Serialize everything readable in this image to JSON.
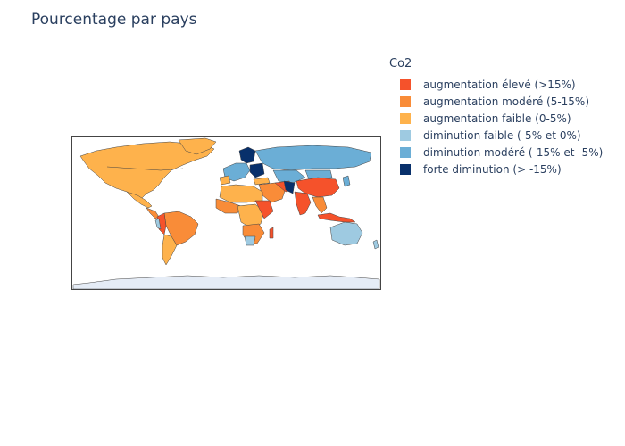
{
  "title": "Pourcentage par pays",
  "legend": {
    "title": "Co2",
    "items": [
      {
        "label": "augmentation élevé (>15%)",
        "color": "#f5522b"
      },
      {
        "label": "augmentation modéré (5-15%)",
        "color": "#f98c38"
      },
      {
        "label": "augmentation faible (0-5%)",
        "color": "#feb24c"
      },
      {
        "label": "diminution faible (-5% et 0%)",
        "color": "#9ecae1"
      },
      {
        "label": "diminution modéré (-15% et -5%)",
        "color": "#6baed6"
      },
      {
        "label": "forte diminution (> -15%)",
        "color": "#08306b"
      }
    ]
  },
  "map_colors": {
    "ocean": "#ffffff",
    "antarctica": "#e5ecf6",
    "border": "#444444"
  }
}
